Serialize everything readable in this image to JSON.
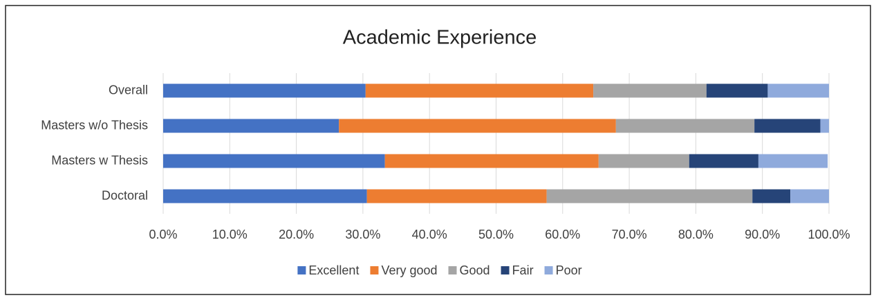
{
  "chart_data": {
    "type": "stacked_bar_horizontal",
    "title": "Academic Experience",
    "categories": [
      "Overall",
      "Masters w/o Thesis",
      "Masters w Thesis",
      "Doctoral"
    ],
    "series": [
      {
        "name": "Excellent",
        "color": "#4472c4",
        "values": [
          30.4,
          26.4,
          33.3,
          30.6
        ]
      },
      {
        "name": "Very good",
        "color": "#ed7d31",
        "values": [
          34.2,
          41.6,
          32.1,
          27.0
        ]
      },
      {
        "name": "Good",
        "color": "#a5a5a5",
        "values": [
          17.0,
          20.8,
          13.6,
          30.9
        ]
      },
      {
        "name": "Fair",
        "color": "#264478",
        "values": [
          9.2,
          9.9,
          10.4,
          5.7
        ]
      },
      {
        "name": "Poor",
        "color": "#8faadc",
        "values": [
          9.2,
          1.3,
          10.4,
          5.8
        ]
      }
    ],
    "xlim": [
      0,
      100
    ],
    "xticks": [
      {
        "value": 0,
        "label": "0.0%"
      },
      {
        "value": 10,
        "label": "10.0%"
      },
      {
        "value": 20,
        "label": "20.0%"
      },
      {
        "value": 30,
        "label": "30.0%"
      },
      {
        "value": 40,
        "label": "40.0%"
      },
      {
        "value": 50,
        "label": "50.0%"
      },
      {
        "value": 60,
        "label": "60.0%"
      },
      {
        "value": 70,
        "label": "70.0%"
      },
      {
        "value": 80,
        "label": "80.0%"
      },
      {
        "value": 90,
        "label": "90.0%"
      },
      {
        "value": 100,
        "label": "100.0%"
      }
    ],
    "grid": true,
    "legend": "bottom"
  }
}
